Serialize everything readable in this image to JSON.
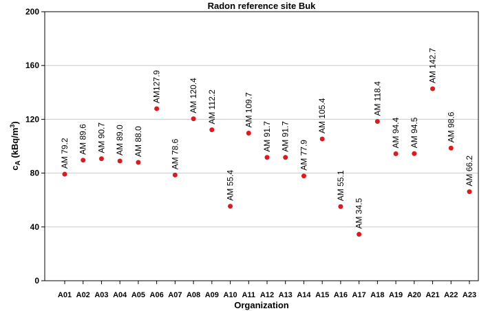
{
  "chart_data": {
    "type": "scatter",
    "title": "Radon reference site Buk",
    "xlabel": "Organization",
    "ylabel": [
      "c",
      "A",
      " (kBq/m",
      "3",
      ")"
    ],
    "categories": [
      "A01",
      "A02",
      "A03",
      "A04",
      "A05",
      "A06",
      "A07",
      "A08",
      "A09",
      "A10",
      "A11",
      "A12",
      "A13",
      "A14",
      "A15",
      "A16",
      "A17",
      "A18",
      "A19",
      "A20",
      "A21",
      "A22",
      "A23"
    ],
    "values": [
      79.2,
      89.6,
      90.7,
      89.0,
      88.0,
      127.9,
      78.6,
      120.4,
      112.2,
      55.4,
      109.7,
      91.7,
      91.7,
      77.9,
      105.4,
      55.1,
      34.5,
      118.4,
      94.4,
      94.5,
      142.7,
      98.6,
      66.2
    ],
    "value_labels": [
      "AM 79.2",
      "AM 89.6",
      "AM 90.7",
      "AM 89.0",
      "AM 88.0",
      "AM127.9",
      "AM 78.6",
      "AM 120.4",
      "AM 112.2",
      "AM 55.4",
      "AM 109.7",
      "AM 91.7",
      "AM 91.7",
      "AM 77.9",
      "AM 105.4",
      "AM 55.1",
      "AM 34.5",
      "AM 118.4",
      "AM 94.4",
      "AM 94.5",
      "AM 142.7",
      "AM 98.6",
      "AM 66.2"
    ],
    "color": "#e0191e",
    "ylim": [
      0,
      200
    ],
    "yticks": [
      0,
      40,
      80,
      120,
      160,
      200
    ],
    "grid": true
  }
}
